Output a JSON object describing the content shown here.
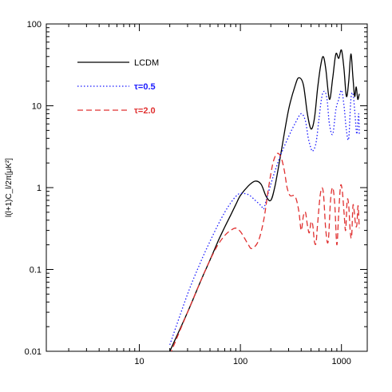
{
  "chart_data": {
    "type": "line",
    "xlabel": "",
    "ylabel": "l(l+1)C_l/2π[μK²]",
    "xscale": "log",
    "yscale": "log",
    "xlim": [
      1.2,
      1800
    ],
    "ylim": [
      0.01,
      100
    ],
    "grid": false,
    "legend_position": "top-left",
    "x_tick_labels": [
      "10",
      "100",
      "1000"
    ],
    "x_tick_values": [
      10,
      100,
      1000
    ],
    "y_tick_labels": [
      "0.01",
      "0.1",
      "1",
      "10",
      "100"
    ],
    "y_tick_values": [
      0.01,
      0.1,
      1,
      10,
      100
    ],
    "series": [
      {
        "name": "LCDM",
        "color": "#000000",
        "dash": "solid",
        "x": [
          20,
          30,
          40,
          50,
          60,
          70,
          80,
          90,
          100,
          120,
          140,
          160,
          180,
          200,
          220,
          250,
          300,
          350,
          380,
          420,
          460,
          500,
          540,
          580,
          620,
          660,
          700,
          760,
          820,
          880,
          940,
          1000,
          1060,
          1120,
          1180,
          1240,
          1300,
          1350,
          1400,
          1450,
          1500
        ],
        "y": [
          0.01,
          0.03,
          0.07,
          0.13,
          0.22,
          0.33,
          0.46,
          0.62,
          0.8,
          1.05,
          1.2,
          1.1,
          0.78,
          0.7,
          1.05,
          2.5,
          9,
          18,
          22,
          18,
          8,
          5.2,
          7,
          16,
          30,
          40,
          28,
          12,
          22,
          43,
          38,
          48,
          28,
          13,
          20,
          43,
          22,
          13,
          17,
          12,
          14
        ]
      },
      {
        "name": "τ=0.5",
        "color": "#1a1aff",
        "dash": "dotted",
        "x": [
          20,
          30,
          40,
          50,
          60,
          70,
          80,
          90,
          100,
          120,
          140,
          160,
          170,
          180,
          200,
          220,
          250,
          300,
          350,
          400,
          440,
          470,
          500,
          520,
          560,
          600,
          640,
          680,
          720,
          760,
          820,
          880,
          940,
          1000,
          1060,
          1120,
          1180,
          1240,
          1300,
          1360,
          1420,
          1480,
          1500
        ],
        "y": [
          0.012,
          0.05,
          0.12,
          0.22,
          0.35,
          0.5,
          0.65,
          0.78,
          0.85,
          0.82,
          0.7,
          0.6,
          0.55,
          0.7,
          1.1,
          1.6,
          2.5,
          4.2,
          6.2,
          8,
          6.5,
          4,
          3,
          2.8,
          3.5,
          7,
          13,
          15,
          12,
          6,
          4.5,
          9,
          12,
          15.5,
          10,
          5,
          4,
          12,
          14,
          8,
          4.5,
          8,
          4.5
        ]
      },
      {
        "name": "τ=2.0",
        "color": "#e03030",
        "dash": "dashed",
        "x": [
          20,
          30,
          40,
          50,
          60,
          70,
          80,
          90,
          100,
          110,
          120,
          130,
          150,
          170,
          190,
          210,
          230,
          250,
          270,
          290,
          310,
          340,
          360,
          380,
          400,
          420,
          440,
          460,
          480,
          500,
          520,
          540,
          560,
          580,
          620,
          660,
          700,
          740,
          780,
          820,
          860,
          900,
          940,
          980,
          1020,
          1060,
          1100,
          1140,
          1180,
          1220,
          1260,
          1300,
          1340,
          1380,
          1420,
          1460,
          1500
        ],
        "y": [
          0.009,
          0.03,
          0.07,
          0.13,
          0.2,
          0.26,
          0.3,
          0.32,
          0.29,
          0.24,
          0.2,
          0.18,
          0.22,
          0.4,
          1.0,
          2.0,
          2.6,
          2.4,
          1.7,
          1.0,
          0.8,
          0.8,
          0.7,
          0.5,
          0.3,
          0.45,
          0.5,
          0.35,
          0.28,
          0.38,
          0.35,
          0.22,
          0.21,
          0.35,
          0.85,
          0.9,
          0.3,
          0.22,
          0.7,
          1.0,
          0.6,
          0.2,
          0.5,
          1.05,
          0.9,
          0.5,
          0.3,
          0.7,
          0.6,
          0.3,
          0.25,
          0.6,
          0.5,
          0.35,
          0.35,
          0.6,
          0.32
        ]
      }
    ]
  }
}
